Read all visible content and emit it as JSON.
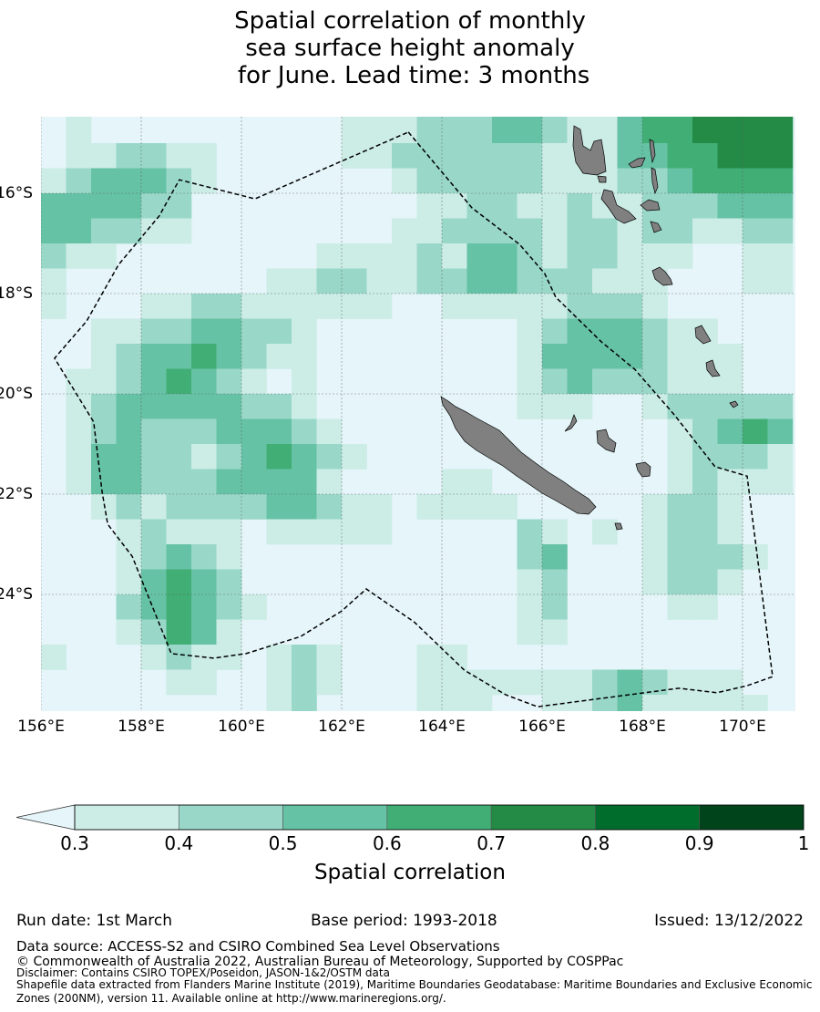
{
  "title": {
    "line1": "Spatial correlation of monthly",
    "line2": "sea surface height anomaly",
    "line3": " for June. Lead time: 3 months"
  },
  "chart_data": {
    "type": "heatmap",
    "title": "Spatial correlation of monthly sea surface height anomaly for June. Lead time: 3 months",
    "lon_range": [
      156,
      171
    ],
    "lat_range": [
      -14.47,
      -26.35
    ],
    "cell_size_deg": 0.5,
    "grid_origin": {
      "lon": 156,
      "lat": -14.5
    },
    "grid_note": "digits: 0=<0.3, 1=0.3-0.4, 2=0.4-0.5, 3=0.5-0.6, 4=0.6-0.7, 5=0.7-0.8; rows north to south, cols west to east",
    "grid": [
      "010000000000111222332113445555",
      "011221100000112222221113344555",
      "123332100000001222221112234444",
      "333322000000000112211211222333",
      "332211000000001122221221221122",
      "211000000001111213321221110011",
      "100000000112211223322211100011",
      "100011221111110011111222100000",
      "001122332210000000012333211000",
      "001233432110000000013333211100",
      "011234321010000000012322211100",
      "012333332210000000011100122222",
      "012322233321000000000000012343",
      "013322123432100000000000012221",
      "013322233331000011000000012111",
      "001212222332110111100000122100",
      "000121110111110000021010122100",
      "000123210000000000023000122210",
      "000134320000000000012000122100",
      "000234321000000000012000011000",
      "000124310000000000011000000000",
      "100012110121000110000000000000",
      "000001100121000111111123211100",
      "000000000120000111001123111110"
    ],
    "x_ticks": [
      "156°E",
      "158°E",
      "160°E",
      "162°E",
      "164°E",
      "166°E",
      "168°E",
      "170°E"
    ],
    "x_tick_values": [
      156,
      158,
      160,
      162,
      164,
      166,
      168,
      170
    ],
    "y_ticks": [
      "16°S",
      "18°S",
      "20°S",
      "22°S",
      "24°S"
    ],
    "y_tick_values": [
      -16,
      -18,
      -20,
      -22,
      -24
    ],
    "gridlines": true,
    "eez_boundary": [
      [
        163.33,
        -14.78
      ],
      [
        164.6,
        -16.29
      ],
      [
        165.55,
        -17.02
      ],
      [
        166.05,
        -17.6
      ],
      [
        166.27,
        -18.07
      ],
      [
        167.18,
        -18.96
      ],
      [
        167.85,
        -19.51
      ],
      [
        168.64,
        -20.42
      ],
      [
        169.45,
        -21.45
      ],
      [
        170.09,
        -21.64
      ],
      [
        170.6,
        -25.64
      ],
      [
        170.09,
        -25.82
      ],
      [
        169.49,
        -25.96
      ],
      [
        168.73,
        -25.87
      ],
      [
        165.91,
        -26.24
      ],
      [
        165.27,
        -26.0
      ],
      [
        164.45,
        -25.51
      ],
      [
        163.45,
        -24.55
      ],
      [
        162.49,
        -23.89
      ],
      [
        162.0,
        -24.33
      ],
      [
        161.18,
        -24.84
      ],
      [
        160.09,
        -25.18
      ],
      [
        159.45,
        -25.27
      ],
      [
        158.6,
        -25.18
      ],
      [
        157.82,
        -23.24
      ],
      [
        157.33,
        -22.6
      ],
      [
        157.22,
        -21.96
      ],
      [
        157.05,
        -20.56
      ],
      [
        156.27,
        -19.29
      ],
      [
        156.91,
        -18.55
      ],
      [
        157.55,
        -17.42
      ],
      [
        158.36,
        -16.45
      ],
      [
        158.76,
        -15.73
      ],
      [
        160.27,
        -16.11
      ],
      [
        163.33,
        -14.78
      ]
    ],
    "colorbar": {
      "label": "Spatial correlation",
      "ticks": [
        "0.3",
        "0.4",
        "0.5",
        "0.6",
        "0.7",
        "0.8",
        "0.9",
        "1"
      ],
      "tick_values": [
        0.3,
        0.4,
        0.5,
        0.6,
        0.7,
        0.8,
        0.9,
        1.0
      ],
      "under_color": "#e5f5f9",
      "colors": [
        "#ccece6",
        "#99d8c9",
        "#66c2a4",
        "#41ae76",
        "#238b45",
        "#006d2c",
        "#00441b"
      ],
      "extend": "min"
    },
    "land_color": "#808080"
  },
  "footer": {
    "run_date": "Run date: 1st March",
    "base_period": "Base period: 1993-2018",
    "issued": "Issued: 13/12/2022",
    "data_source": "Data source: ACCESS-S2 and CSIRO Combined Sea Level Observations",
    "copyright": "© Commonwealth of Australia 2022, Australian Bureau of Meteorology, Supported by COSPPac",
    "disclaimer": "Disclaimer: Contains CSIRO TOPEX/Poseidon, JASON-1&2/OSTM data",
    "shapefile1": "Shapefile data extracted from Flanders Marine Institute (2019), Maritime Boundaries Geodatabase: Maritime Boundaries and Exclusive Economic",
    "shapefile2": "Zones (200NM), version 11. Available online at http://www.marineregions.org/."
  }
}
